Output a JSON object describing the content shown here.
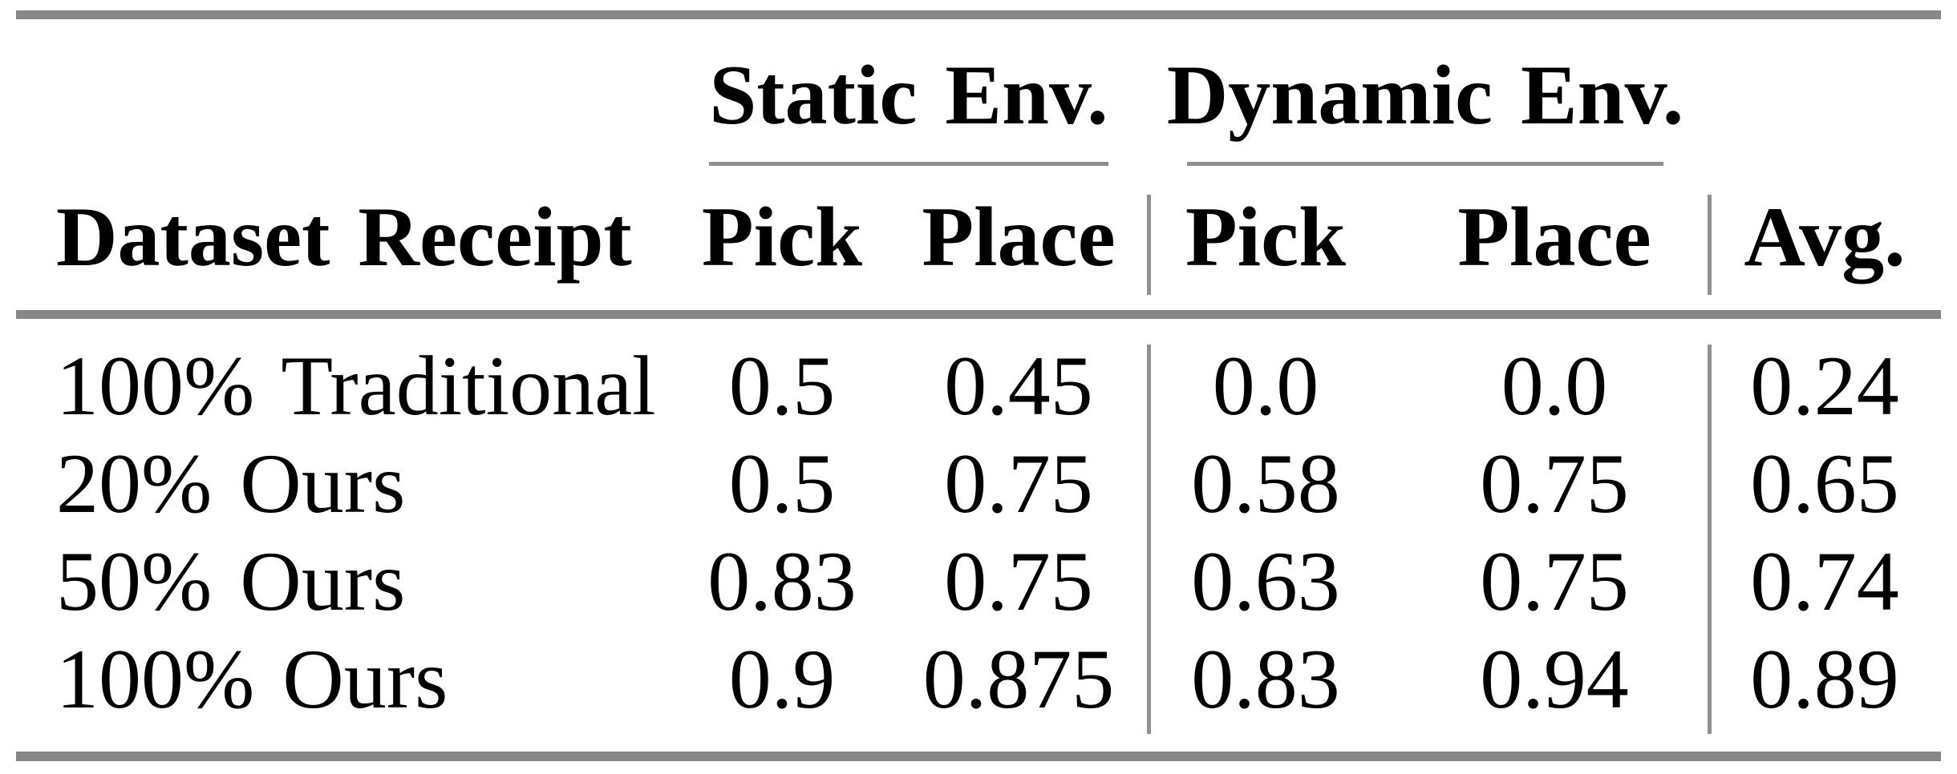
{
  "table": {
    "group_headers": [
      {
        "label": "Static Env."
      },
      {
        "label": "Dynamic Env."
      }
    ],
    "column_headers": {
      "dataset": "Dataset Receipt",
      "static_pick": "Pick",
      "static_place": "Place",
      "dynamic_pick": "Pick",
      "dynamic_place": "Place",
      "avg": "Avg."
    },
    "rows": [
      {
        "label": "100% Traditional",
        "static_pick": "0.5",
        "static_place": "0.45",
        "dynamic_pick": "0.0",
        "dynamic_place": "0.0",
        "avg": "0.24"
      },
      {
        "label": "20% Ours",
        "static_pick": "0.5",
        "static_place": "0.75",
        "dynamic_pick": "0.58",
        "dynamic_place": "0.75",
        "avg": "0.65"
      },
      {
        "label": "50% Ours",
        "static_pick": "0.83",
        "static_place": "0.75",
        "dynamic_pick": "0.63",
        "dynamic_place": "0.75",
        "avg": "0.74"
      },
      {
        "label": "100% Ours",
        "static_pick": "0.9",
        "static_place": "0.875",
        "dynamic_pick": "0.83",
        "dynamic_place": "0.94",
        "avg": "0.89"
      }
    ]
  },
  "colors": {
    "background": "#ffffff",
    "text": "#000000",
    "thick_rule_gray": "#878787",
    "thin_rule_gray": "#8e8e8e",
    "vertical_rule_gray": "#909090"
  }
}
